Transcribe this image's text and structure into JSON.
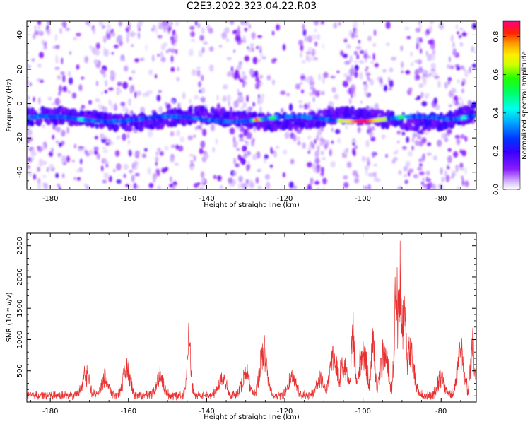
{
  "title": "C2E3.2022.323.04.22.R03",
  "chart_data": [
    {
      "type": "heatmap",
      "title": "C2E3.2022.323.04.22.R03",
      "xlabel": "Height of straight line (km)",
      "ylabel": "Frequency (Hz)",
      "xlim": [
        -186,
        -71
      ],
      "ylim": [
        -50,
        48
      ],
      "x_ticks": [
        "-180",
        "-160",
        "-140",
        "-120",
        "-100",
        "-80"
      ],
      "y_ticks": [
        "-40",
        "-20",
        "0",
        "20",
        "40"
      ],
      "colorbar": {
        "label": "Normalized spectral amplitude",
        "range": [
          0,
          0.88
        ],
        "ticks": [
          "0.0",
          "0.2",
          "0.4",
          "0.6",
          "0.8"
        ],
        "colormap": "rainbow"
      },
      "band": {
        "center_frequency_hz": -9,
        "peak_x": [
          -104,
          -96
        ],
        "peak_value": 0.85,
        "secondary_peaks": [
          [
            -172,
            0.45
          ],
          [
            -127,
            0.8
          ],
          [
            -123,
            0.55
          ],
          [
            -90,
            0.55
          ],
          [
            -74,
            0.45
          ]
        ]
      },
      "colors": {
        "low": "#e0ccff",
        "mid_low": "#7a00ff",
        "blue": "#1010ff",
        "cyan": "#00e0ff",
        "green": "#20e040",
        "yellow": "#ffff00",
        "orange": "#ff9900",
        "red": "#ff0000",
        "high": "#ff0070"
      }
    },
    {
      "type": "line",
      "xlabel": "Height of straight line (km)",
      "ylabel": "SNR (10 * v/v)",
      "xlim": [
        -186,
        -71
      ],
      "ylim": [
        0,
        2700
      ],
      "x_ticks": [
        "-180",
        "-160",
        "-140",
        "-120",
        "-100",
        "-80"
      ],
      "y_ticks": [
        "500",
        "1000",
        "1500",
        "2000",
        "2500"
      ],
      "baseline_snr": 180,
      "peaks": [
        {
          "x": -171,
          "y": 600
        },
        {
          "x": -166,
          "y": 530
        },
        {
          "x": -160.5,
          "y": 720
        },
        {
          "x": -152,
          "y": 560
        },
        {
          "x": -144.5,
          "y": 1370
        },
        {
          "x": -136,
          "y": 520
        },
        {
          "x": -130,
          "y": 610
        },
        {
          "x": -125.5,
          "y": 1050
        },
        {
          "x": -118,
          "y": 570
        },
        {
          "x": -111,
          "y": 500
        },
        {
          "x": -107.5,
          "y": 1010
        },
        {
          "x": -105,
          "y": 820
        },
        {
          "x": -102.5,
          "y": 1370
        },
        {
          "x": -100,
          "y": 1140
        },
        {
          "x": -97.5,
          "y": 1300
        },
        {
          "x": -94.5,
          "y": 1050
        },
        {
          "x": -91.5,
          "y": 2300
        },
        {
          "x": -90.5,
          "y": 2700
        },
        {
          "x": -89.5,
          "y": 2100
        },
        {
          "x": -88,
          "y": 1100
        },
        {
          "x": -80,
          "y": 520
        },
        {
          "x": -75,
          "y": 1050
        },
        {
          "x": -72,
          "y": 1250
        }
      ],
      "series_color": "#e83030"
    }
  ]
}
